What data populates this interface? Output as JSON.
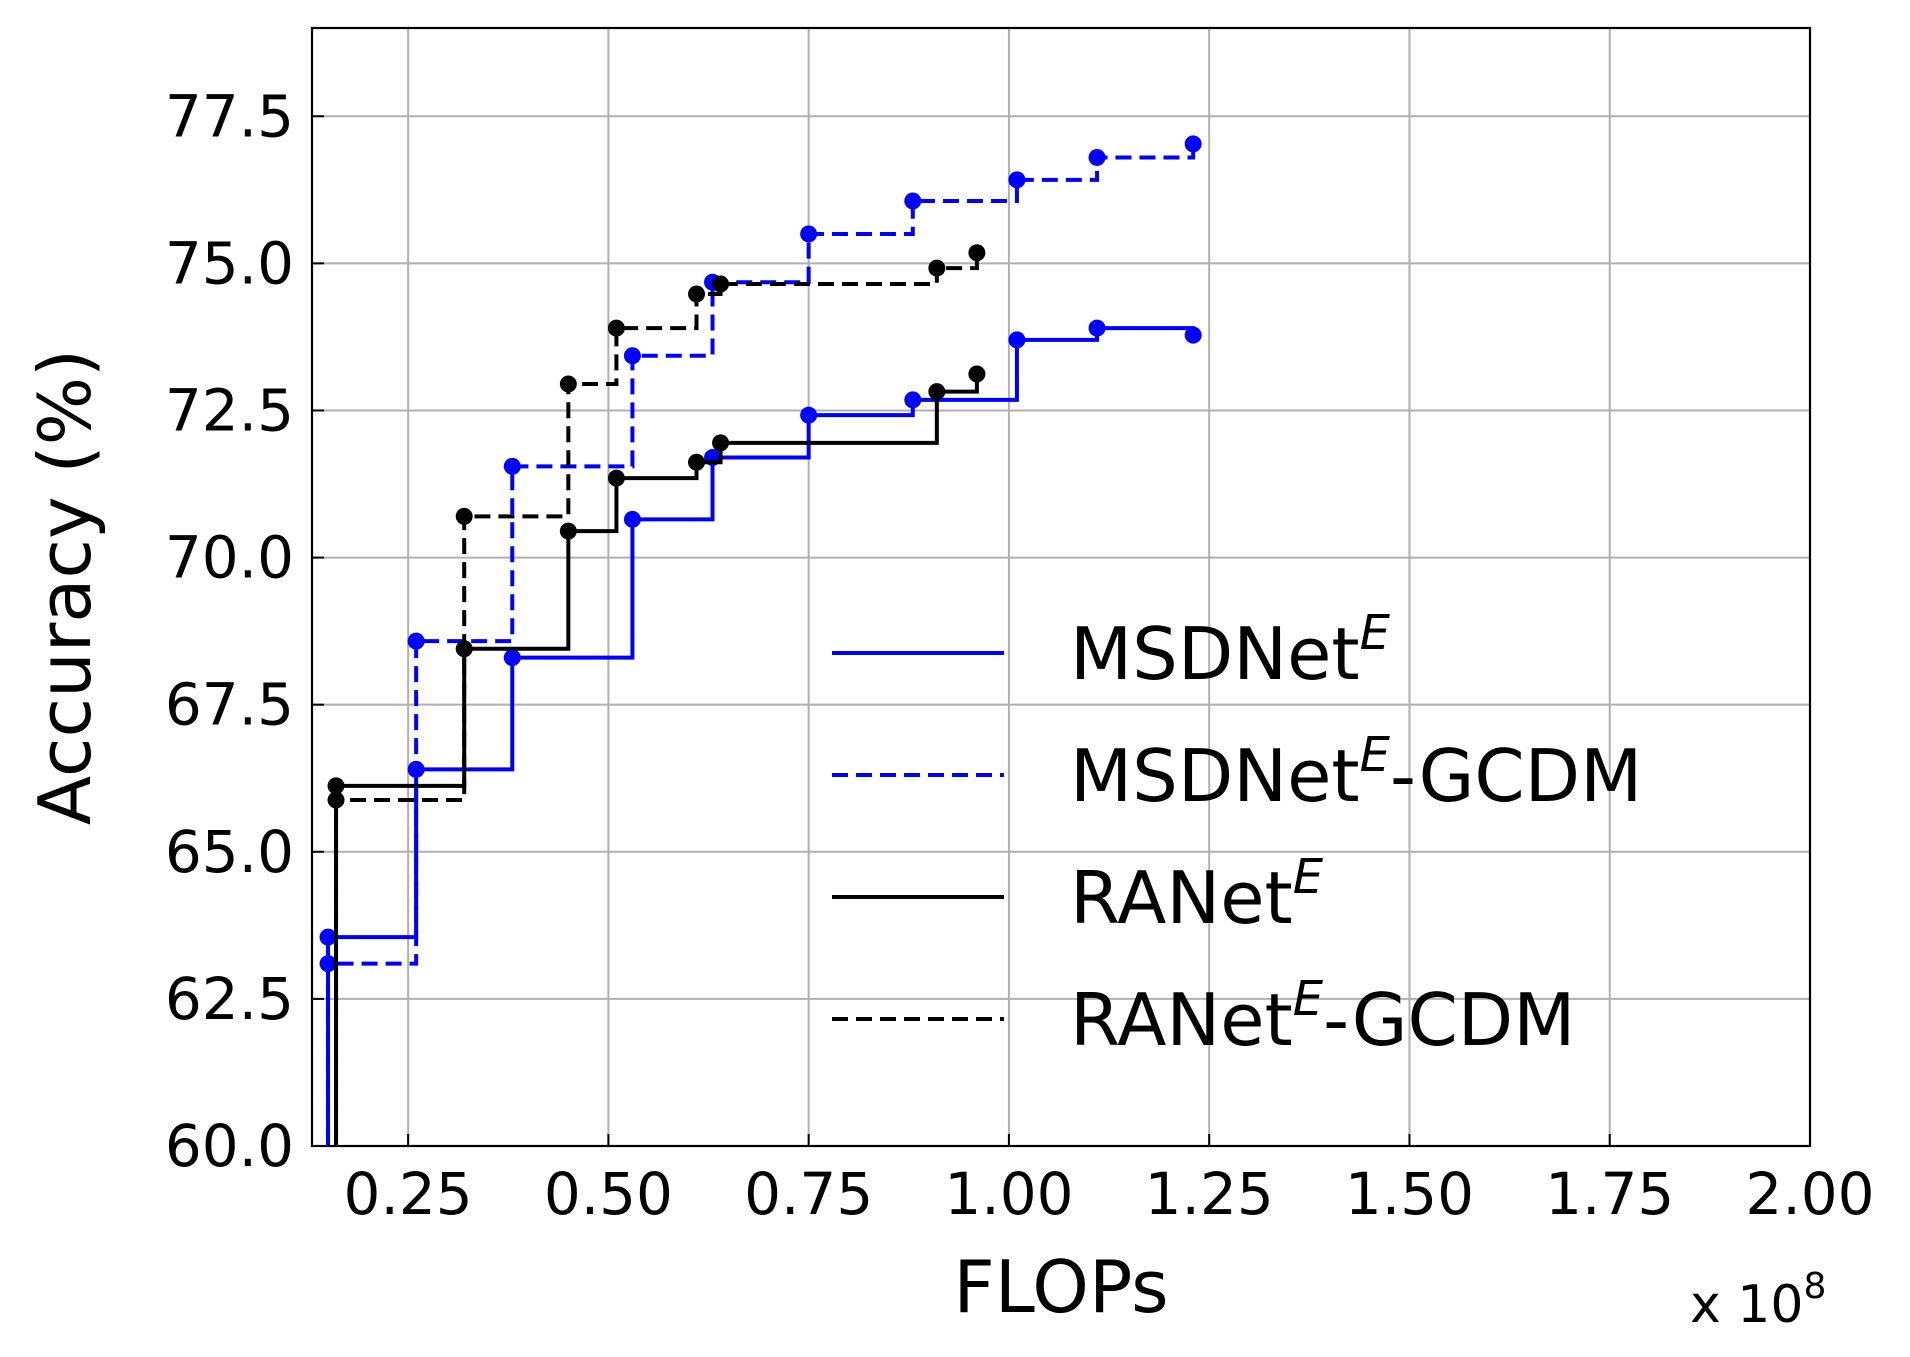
{
  "chart_data": {
    "type": "line",
    "step": "post",
    "xlabel": "FLOPs",
    "ylabel": "Accuracy (%)",
    "x_multiplier_label": "x 10",
    "x_multiplier_exp": "8",
    "xlim": [
      0.13,
      2.0
    ],
    "ylim": [
      60.0,
      79.0
    ],
    "x_ticks": [
      "0.25",
      "0.50",
      "0.75",
      "1.00",
      "1.25",
      "1.50",
      "1.75",
      "2.00"
    ],
    "x_tick_values": [
      0.25,
      0.5,
      0.75,
      1.0,
      1.25,
      1.5,
      1.75,
      2.0
    ],
    "y_ticks": [
      "60.0",
      "62.5",
      "65.0",
      "67.5",
      "70.0",
      "72.5",
      "75.0",
      "77.5"
    ],
    "y_tick_values": [
      60.0,
      62.5,
      65.0,
      67.5,
      70.0,
      72.5,
      75.0,
      77.5
    ],
    "grid": true,
    "legend_position": "lower-right",
    "series": [
      {
        "name_base": "MSDNet",
        "name_sup": "E",
        "name_suffix": "",
        "color": "#0000ff",
        "dash": "solid",
        "x": [
          0.15,
          0.26,
          0.38,
          0.53,
          0.63,
          0.75,
          0.88,
          1.01,
          1.11,
          1.23
        ],
        "y": [
          63.55,
          66.4,
          68.3,
          70.65,
          71.7,
          72.42,
          72.68,
          73.7,
          73.9,
          73.78
        ]
      },
      {
        "name_base": "MSDNet",
        "name_sup": "E",
        "name_suffix": "-GCDM",
        "color": "#0000ff",
        "dash": "dashed",
        "x": [
          0.15,
          0.26,
          0.38,
          0.53,
          0.63,
          0.75,
          0.88,
          1.01,
          1.11,
          1.23
        ],
        "y": [
          63.1,
          68.58,
          71.55,
          73.43,
          74.68,
          75.5,
          76.06,
          76.42,
          76.8,
          77.03
        ]
      },
      {
        "name_base": "RANet",
        "name_sup": "E",
        "name_suffix": "",
        "color": "#000000",
        "dash": "solid",
        "x": [
          0.16,
          0.32,
          0.45,
          0.51,
          0.61,
          0.64,
          0.91,
          0.96
        ],
        "y": [
          66.12,
          68.45,
          70.45,
          71.35,
          71.62,
          71.95,
          72.82,
          73.12
        ]
      },
      {
        "name_base": "RANet",
        "name_sup": "E",
        "name_suffix": "-GCDM",
        "color": "#000000",
        "dash": "dashed",
        "x": [
          0.16,
          0.32,
          0.45,
          0.51,
          0.61,
          0.64,
          0.91,
          0.96
        ],
        "y": [
          65.88,
          70.7,
          72.95,
          73.9,
          74.48,
          74.65,
          74.92,
          75.18
        ]
      }
    ]
  }
}
